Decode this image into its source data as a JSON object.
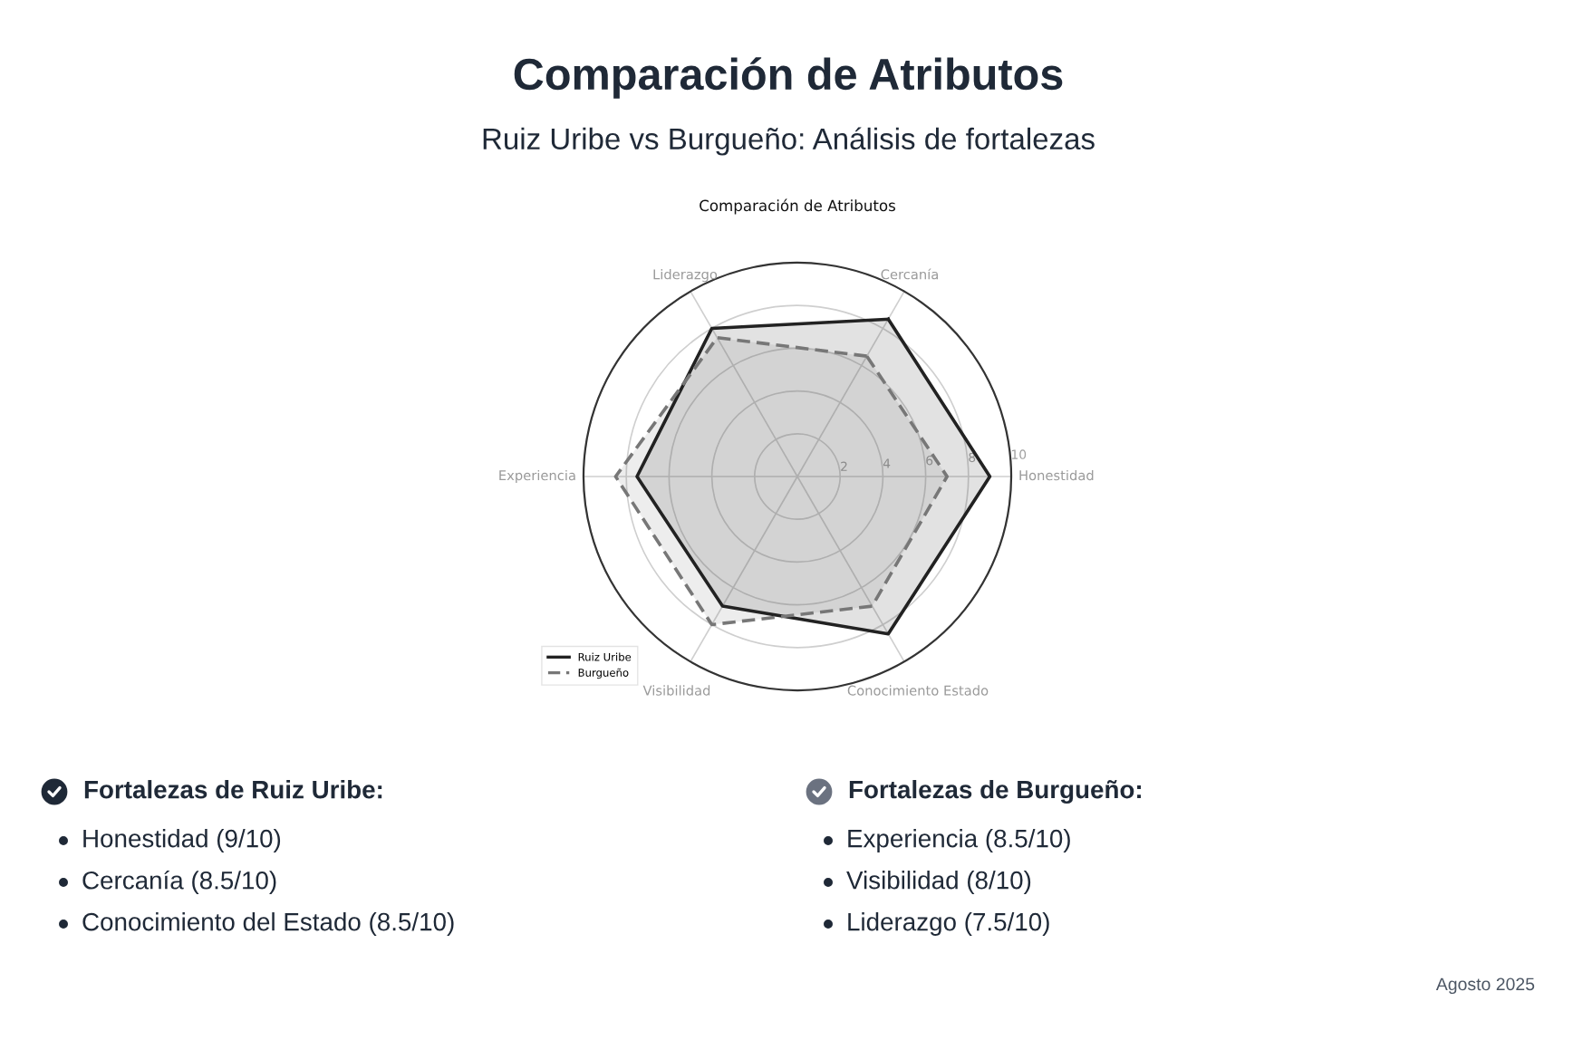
{
  "chart_data": {
    "type": "radar",
    "title": "Comparación de Atributos",
    "subtitle": "Ruiz Uribe vs Burgueño: Análisis de fortalezas",
    "categories": [
      "Cercanía",
      "Honestidad",
      "Conocimiento Estado",
      "Visibilidad",
      "Experiencia",
      "Liderazgo"
    ],
    "series": [
      {
        "name": "Ruiz Uribe",
        "color": "#222222",
        "line_style": "solid",
        "values": [
          8.5,
          9,
          8.5,
          7,
          7.5,
          8
        ]
      },
      {
        "name": "Burgueño",
        "color": "#777777",
        "line_style": "dashed",
        "values": [
          6.5,
          7,
          7,
          8,
          8.5,
          7.5
        ]
      }
    ],
    "ylim": [
      0,
      10
    ],
    "yticks": [
      2,
      4,
      6,
      8,
      10
    ],
    "grid": true,
    "legend": "bottom left",
    "annotations": [
      "Comparación de Atributos",
      "Fortalezas de Ruiz Uribe:",
      "Honestidad (9/10)",
      "Cercanía (8.5/10)",
      "Conocimiento del Estado (8.5/10)",
      "Fortalezas de Burgueño:",
      "Experiencia (8.5/10)",
      "Visibilidad (8/10)",
      "Liderazgo (7.5/10)",
      "Agosto 2025"
    ]
  }
}
